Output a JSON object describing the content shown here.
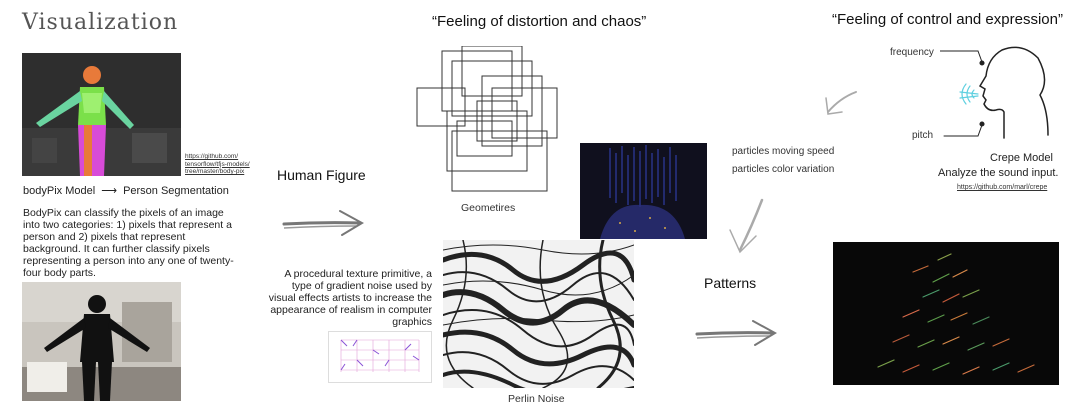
{
  "title": "Visualization",
  "quote_left": "“Feeling of distortion and chaos”",
  "quote_right": "“Feeling of control and expression”",
  "bodypix": {
    "link": "https://github.com/ tensorflow/tfjs-models/ tree/master/body-pix",
    "model_label": "bodyPix Model",
    "arrow": "⟶",
    "output_label": "Person Segmentation",
    "description": "BodyPix can classify the pixels of an image into two categories: 1) pixels that represent a person and 2) pixels that represent background. It can further classify pixels representing a person into any one of twenty-four body parts."
  },
  "human_figure": "Human Figure",
  "geometries_label": "Geometires",
  "perlin": {
    "description": "A procedural texture primitive, a type of gradient noise used by visual effects artists to increase the appearance of realism in computer graphics",
    "label": "Perlin Noise"
  },
  "patterns": "Patterns",
  "particles": {
    "speed": "particles moving speed",
    "color": "particles color variation"
  },
  "crepe": {
    "frequency": "frequency",
    "pitch": "pitch",
    "model": "Crepe Model",
    "analyze": "Analyze the sound input.",
    "link": "https://github.com/marl/crepe"
  },
  "colors": {
    "segmentation_green": "#7be04a",
    "segmentation_magenta": "#d84bd8",
    "segmentation_orange": "#e87a3a",
    "particle_blue": "#3b4fd8",
    "breath_cyan": "#5fd0e0"
  }
}
